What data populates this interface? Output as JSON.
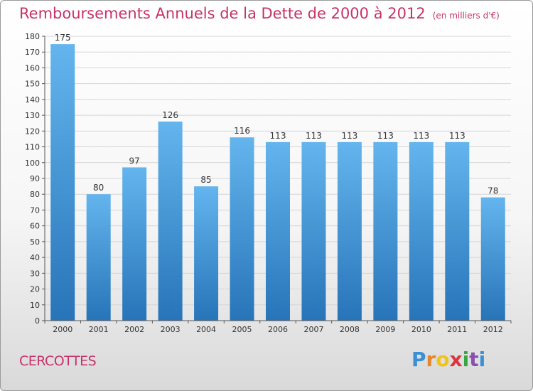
{
  "title": "Remboursements Annuels de la Dette de 2000 à 2012",
  "unit_note": "(en milliers d'€)",
  "commune": "CERCOTTES",
  "logo": {
    "text": "Proxiti",
    "letter_colors": [
      "#3a8fd6",
      "#e8852a",
      "#f0c419",
      "#d9363e",
      "#3aa547",
      "#8a4fb0",
      "#3a8fd6"
    ]
  },
  "colors": {
    "bar_top": "#64b5ee",
    "bar_bottom": "#2774b8",
    "title": "#c6336a",
    "grid": "#d6d6d6"
  },
  "chart_data": {
    "type": "bar",
    "categories": [
      "2000",
      "2001",
      "2002",
      "2003",
      "2004",
      "2005",
      "2006",
      "2007",
      "2008",
      "2009",
      "2010",
      "2011",
      "2012"
    ],
    "values": [
      175,
      80,
      97,
      126,
      85,
      116,
      113,
      113,
      113,
      113,
      113,
      113,
      78
    ],
    "title": "Remboursements Annuels de la Dette de 2000 à 2012",
    "xlabel": "",
    "ylabel": "",
    "ylim": [
      0,
      180
    ],
    "ytick_step": 10,
    "grid": true,
    "data_labels": true
  }
}
